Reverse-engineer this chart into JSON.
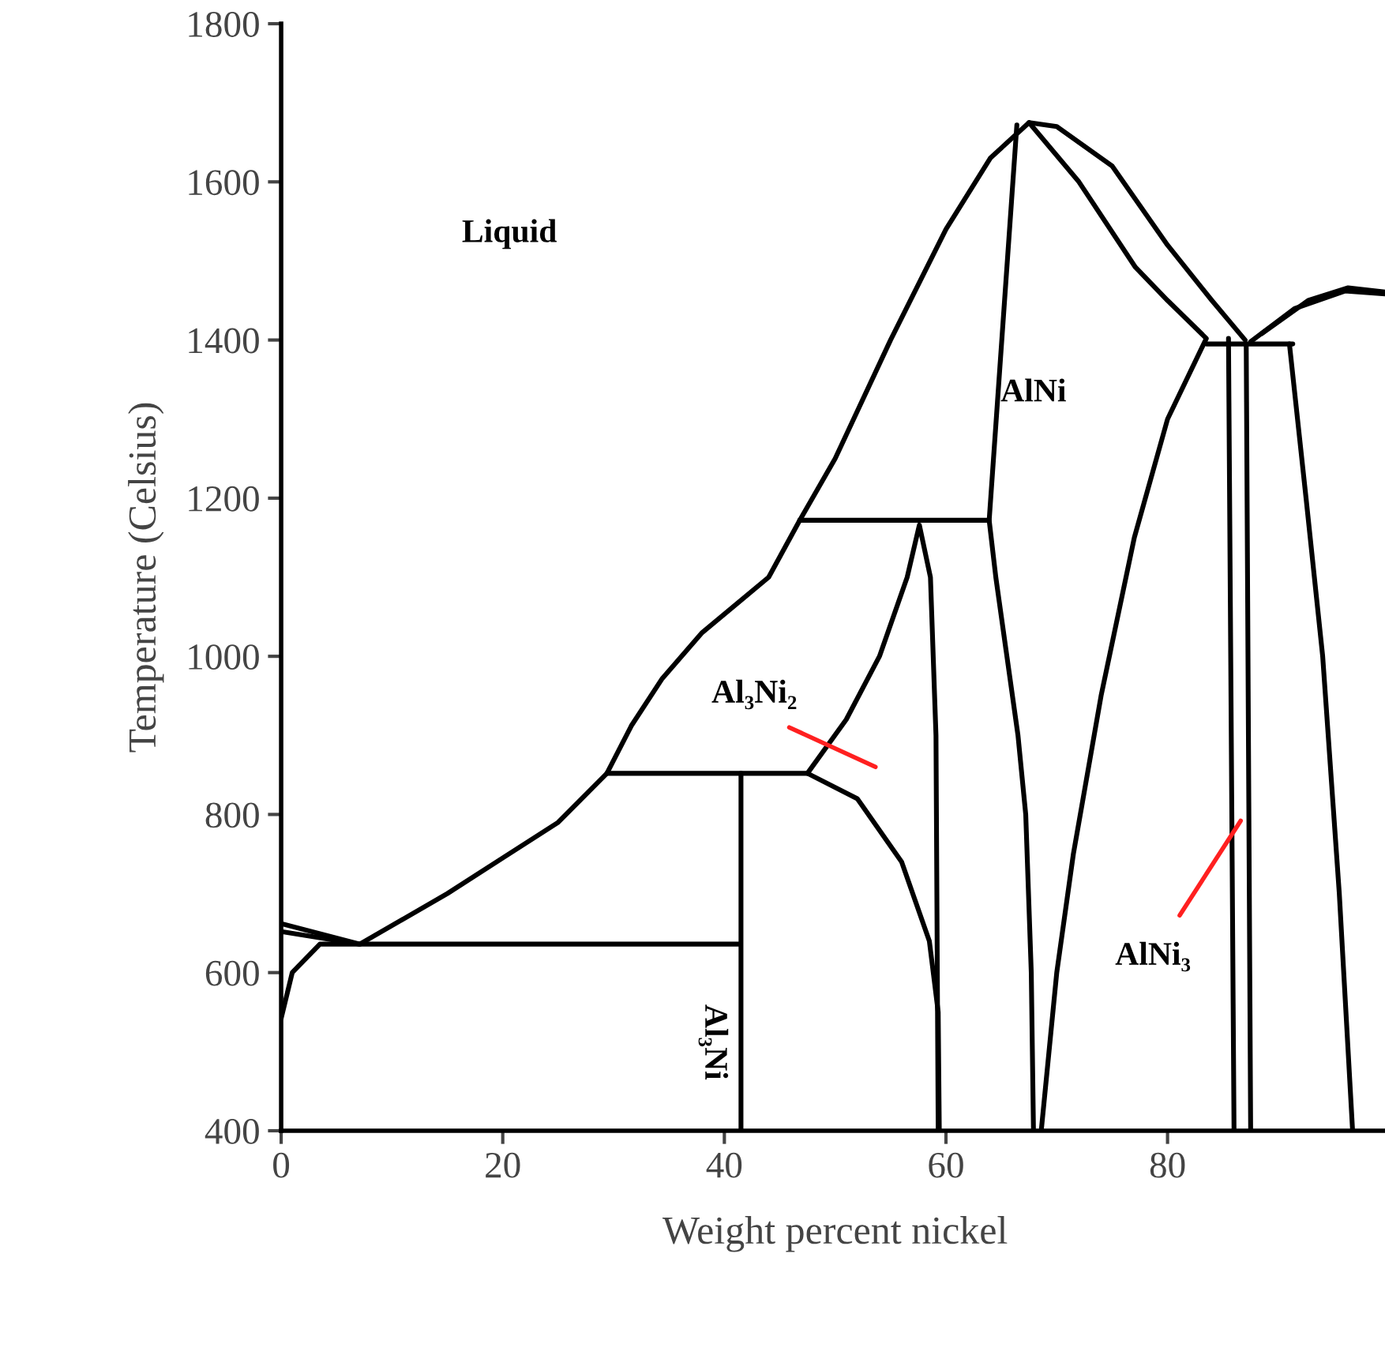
{
  "chart_data": {
    "type": "line",
    "xlabel": "Weight percent nickel",
    "ylabel": "Temperature (Celsius)",
    "xlim": [
      0,
      100
    ],
    "ylim": [
      400,
      1800
    ],
    "xticks": [
      0,
      20,
      40,
      60,
      80
    ],
    "yticks": [
      400,
      600,
      800,
      1000,
      1200,
      1400,
      1600,
      1800
    ],
    "grid": false,
    "legend": false,
    "marker": "none",
    "line_style": "solid",
    "series": [
      {
        "color": "#000000",
        "x": [
          0,
          7.1,
          15,
          20,
          25,
          29.4,
          31.6,
          34.4,
          38,
          44,
          46.8,
          50,
          55,
          60,
          64,
          67.5,
          70,
          75,
          80,
          84,
          87
        ],
        "values": [
          662,
          636,
          700,
          745,
          790,
          852,
          912,
          972,
          1030,
          1100,
          1172,
          1250,
          1400,
          1540,
          1630,
          1675,
          1670,
          1620,
          1520,
          1450,
          1400
        ]
      },
      {
        "color": "#000000",
        "x": [
          0,
          7.1
        ],
        "values": [
          652,
          636
        ]
      },
      {
        "color": "#000000",
        "x": [
          0,
          1,
          3.5,
          41.3
        ],
        "values": [
          542,
          600,
          636,
          636
        ]
      },
      {
        "color": "#000000",
        "x": [
          41.5,
          41.5
        ],
        "values": [
          400,
          852
        ]
      },
      {
        "color": "#000000",
        "x": [
          29.4,
          47.5
        ],
        "values": [
          852,
          852
        ]
      },
      {
        "color": "#000000",
        "x": [
          46.8,
          63.9
        ],
        "values": [
          1172,
          1172
        ]
      },
      {
        "color": "#000000",
        "x": [
          47.5,
          51,
          54,
          56.5,
          57.6,
          58.6,
          59.1,
          59.3
        ],
        "values": [
          852,
          920,
          1000,
          1100,
          1166,
          1100,
          900,
          400
        ]
      },
      {
        "color": "#000000",
        "x": [
          47.5,
          52,
          56,
          58.5,
          59.3,
          59.4
        ],
        "values": [
          852,
          820,
          740,
          640,
          550,
          400
        ]
      },
      {
        "color": "#000000",
        "x": [
          66.4,
          63.9,
          64.5,
          65.5,
          66.5,
          67.2,
          67.7,
          67.9
        ],
        "values": [
          1672,
          1172,
          1100,
          1000,
          900,
          800,
          600,
          400
        ]
      },
      {
        "color": "#000000",
        "x": [
          67.5,
          72,
          77.1,
          80,
          83.5,
          80,
          77,
          74,
          71.5,
          70,
          68.6
        ],
        "values": [
          1675,
          1600,
          1492,
          1450,
          1402,
          1300,
          1150,
          950,
          750,
          600,
          400
        ]
      },
      {
        "color": "#000000",
        "x": [
          83.5,
          91.3
        ],
        "values": [
          1395,
          1395
        ]
      },
      {
        "color": "#000000",
        "x": [
          85.5,
          86
        ],
        "values": [
          1402,
          400
        ]
      },
      {
        "color": "#000000",
        "x": [
          87.1,
          87.5
        ],
        "values": [
          1395,
          400
        ]
      },
      {
        "color": "#000000",
        "x": [
          91,
          92.5,
          94,
          95.5,
          96.7
        ],
        "values": [
          1395,
          1200,
          1000,
          700,
          400
        ]
      },
      {
        "color": "#000000",
        "x": [
          88.5,
          92.7,
          96.3,
          100
        ],
        "values": [
          1408,
          1450,
          1466,
          1460
        ]
      },
      {
        "color": "#000000",
        "x": [
          87.5,
          91.5,
          96,
          100
        ],
        "values": [
          1398,
          1440,
          1462,
          1458
        ]
      }
    ],
    "annotations": [
      "Liquid",
      "AlNi",
      "Al₃Ni₂",
      "Al₃Ni",
      {
        "text": "AlNi₃",
        "x": 86.6,
        "y": 792
      }
    ]
  }
}
